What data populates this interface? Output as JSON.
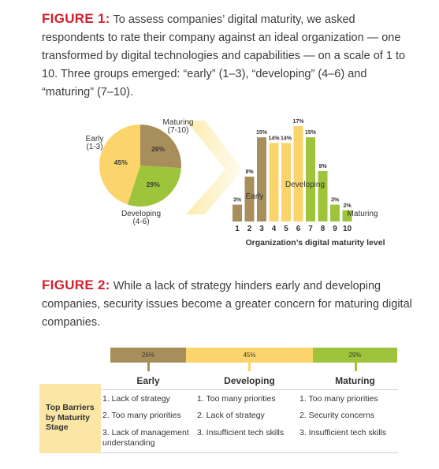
{
  "figure1": {
    "label": "FIGURE 1:",
    "text": " To assess companies’ digital maturity, we asked respondents to rate their company against an ideal organization — one transformed by digital technologies and capabilities — on a scale of 1 to 10. Three groups emerged: “early” (1–3), “developing” (4–6) and “maturing” (7–10)."
  },
  "figure2": {
    "label": "FIGURE 2:",
    "text": " While a lack of strategy hinders early and developing companies, security issues become a greater concern for maturing digital companies."
  },
  "colors": {
    "early": "#a88e5a",
    "developing": "#fbd46b",
    "maturing": "#9dc43a",
    "highlight": "#fbe6a6",
    "red": "#d3202e"
  },
  "chart_data": [
    {
      "type": "pie",
      "slices": [
        {
          "name": "Early",
          "range": "(1-3)",
          "value": 26,
          "label": "26%"
        },
        {
          "name": "Maturing",
          "range": "(7-10)",
          "value": 29,
          "label": "29%"
        },
        {
          "name": "Developing",
          "range": "(4-6)",
          "value": 45,
          "label": "45%"
        }
      ]
    },
    {
      "type": "bar",
      "categories": [
        "1",
        "2",
        "3",
        "4",
        "5",
        "6",
        "7",
        "8",
        "9",
        "10"
      ],
      "values": [
        3,
        8,
        15,
        14,
        14,
        17,
        15,
        9,
        3,
        2
      ],
      "labels": [
        "3%",
        "8%",
        "15%",
        "14%",
        "14%",
        "17%",
        "15%",
        "9%",
        "3%",
        "2%"
      ],
      "groups": [
        "early",
        "early",
        "early",
        "developing",
        "developing",
        "developing",
        "maturing",
        "maturing",
        "maturing",
        "maturing"
      ],
      "group_labels": {
        "early": "Early",
        "developing": "Developing",
        "maturing": "Maturing"
      },
      "xlabel": "Organization’s digital maturity level",
      "ylim": [
        0,
        17
      ]
    },
    {
      "type": "table",
      "stages": [
        {
          "key": "early",
          "name": "Early",
          "share": "26%",
          "value": 26,
          "barriers": [
            "1. Lack of strategy",
            "2. Too many priorities",
            "3. Lack of management understanding"
          ]
        },
        {
          "key": "developing",
          "name": "Developing",
          "share": "45%",
          "value": 45,
          "barriers": [
            "1. Too many priorities",
            "2. Lack of strategy",
            "3. Insufficient tech skills"
          ]
        },
        {
          "key": "maturing",
          "name": "Maturing",
          "share": "29%",
          "value": 29,
          "barriers": [
            "1. Too many priorities",
            "2. Security concerns",
            "3. Insufficient tech skills"
          ]
        }
      ],
      "row_header": "Top Barriers by Maturity Stage"
    }
  ]
}
